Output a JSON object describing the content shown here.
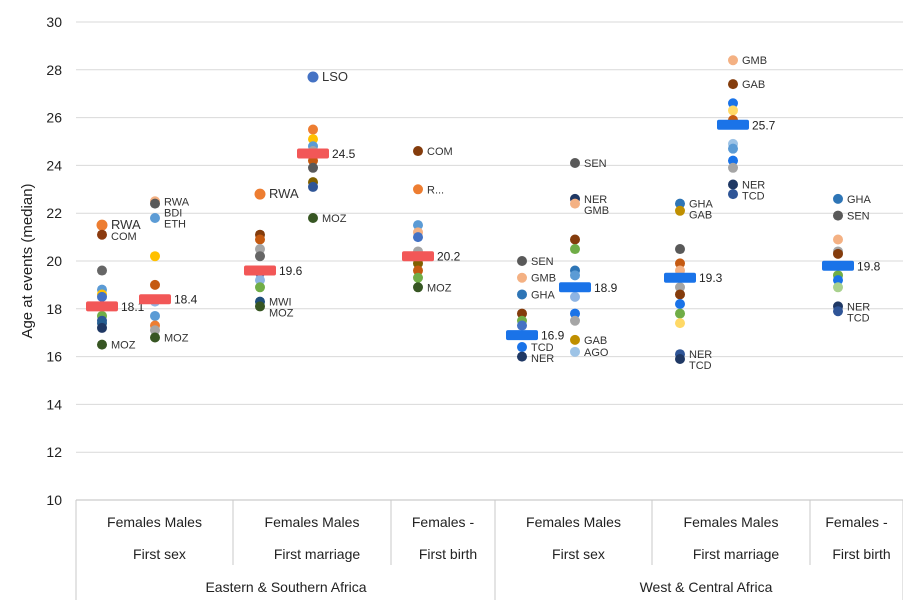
{
  "chart_data": {
    "type": "scatter",
    "ylabel": "Age at events (median)",
    "ylim": [
      10,
      30
    ],
    "yticks": [
      10,
      12,
      14,
      16,
      18,
      20,
      22,
      24,
      26,
      28,
      30
    ],
    "grid": "horizontal",
    "subcategories": [
      "Females Males",
      "Females Males",
      "Females      -",
      "Females Males",
      "Females Males",
      "Females      -"
    ],
    "events": [
      "First sex",
      "First marriage",
      "First birth",
      "First sex",
      "First marriage",
      "First birth"
    ],
    "regions": [
      "Eastern & Southern Africa",
      "West & Central Africa"
    ],
    "colors": {
      "esa_median": "#f25757",
      "wca_median": "#1a73e8"
    },
    "groups": [
      {
        "region": "Eastern & Southern Africa",
        "event": "First sex",
        "sex": "Females",
        "median": 18.1,
        "median_label": "18.1",
        "points": [
          {
            "value": 21.5,
            "color": "#ed7d31",
            "label": "RWA",
            "big": true
          },
          {
            "value": 21.1,
            "color": "#8b3a0f",
            "label": "COM"
          },
          {
            "value": 19.6,
            "color": "#666666"
          },
          {
            "value": 18.8,
            "color": "#5b9bd5"
          },
          {
            "value": 18.6,
            "color": "#ffc000"
          },
          {
            "value": 18.5,
            "color": "#4472c4"
          },
          {
            "value": 17.7,
            "color": "#70ad47"
          },
          {
            "value": 17.5,
            "color": "#2f5597"
          },
          {
            "value": 17.4,
            "color": "#255e91"
          },
          {
            "value": 17.2,
            "color": "#1f3864"
          },
          {
            "value": 16.5,
            "color": "#375623",
            "label": "MOZ"
          }
        ]
      },
      {
        "region": "Eastern & Southern Africa",
        "event": "First sex",
        "sex": "Males",
        "median": 18.4,
        "median_label": "18.4",
        "points": [
          {
            "value": 22.5,
            "color": "#f4b183",
            "label": "RWA"
          },
          {
            "value": 22.4,
            "color": "#595959",
            "label": "BDI"
          },
          {
            "value": 21.8,
            "color": "#5b9bd5",
            "label": "ETH"
          },
          {
            "value": 20.2,
            "color": "#ffc000"
          },
          {
            "value": 19.0,
            "color": "#c55a11"
          },
          {
            "value": 18.3,
            "color": "#8eb4e3"
          },
          {
            "value": 17.7,
            "color": "#5b9bd5"
          },
          {
            "value": 17.3,
            "color": "#ed7d31"
          },
          {
            "value": 17.1,
            "color": "#a5a5a5"
          },
          {
            "value": 16.8,
            "color": "#375623",
            "label": "MOZ"
          }
        ]
      },
      {
        "region": "Eastern & Southern Africa",
        "event": "First marriage",
        "sex": "Females",
        "median": 19.6,
        "median_label": "19.6",
        "points": [
          {
            "value": 22.8,
            "color": "#ed7d31",
            "label": "RWA",
            "big": true
          },
          {
            "value": 21.1,
            "color": "#843c0c"
          },
          {
            "value": 20.9,
            "color": "#c55a11"
          },
          {
            "value": 20.5,
            "color": "#a5a5a5"
          },
          {
            "value": 20.2,
            "color": "#666666"
          },
          {
            "value": 19.5,
            "color": "#4472c4"
          },
          {
            "value": 19.2,
            "color": "#8eb4e3"
          },
          {
            "value": 18.9,
            "color": "#70ad47"
          },
          {
            "value": 18.3,
            "color": "#1f4e79",
            "label": "MWI"
          },
          {
            "value": 18.1,
            "color": "#375623",
            "label": "MOZ"
          }
        ]
      },
      {
        "region": "Eastern & Southern Africa",
        "event": "First marriage",
        "sex": "Males",
        "median": 24.5,
        "median_label": "24.5",
        "points": [
          {
            "value": 27.7,
            "color": "#4472c4",
            "label": "LSO",
            "big": true
          },
          {
            "value": 25.5,
            "color": "#ed7d31"
          },
          {
            "value": 25.1,
            "color": "#ffc000"
          },
          {
            "value": 24.8,
            "color": "#5b9bd5"
          },
          {
            "value": 24.6,
            "color": "#a5a5a5"
          },
          {
            "value": 24.2,
            "color": "#c55a11"
          },
          {
            "value": 23.9,
            "color": "#595959"
          },
          {
            "value": 23.3,
            "color": "#806000"
          },
          {
            "value": 23.1,
            "color": "#2f5597"
          },
          {
            "value": 21.8,
            "color": "#375623",
            "label": "MOZ"
          }
        ]
      },
      {
        "region": "Eastern & Southern Africa",
        "event": "First birth",
        "sex": "Females",
        "median": 20.2,
        "median_label": "20.2",
        "points": [
          {
            "value": 24.6,
            "color": "#843c0c",
            "label": "COM"
          },
          {
            "value": 23.0,
            "color": "#ed7d31",
            "label": "R..."
          },
          {
            "value": 21.5,
            "color": "#5b9bd5"
          },
          {
            "value": 21.2,
            "color": "#f4b183"
          },
          {
            "value": 21.0,
            "color": "#4472c4"
          },
          {
            "value": 20.4,
            "color": "#a5a5a5"
          },
          {
            "value": 19.9,
            "color": "#806000"
          },
          {
            "value": 19.6,
            "color": "#c55a11"
          },
          {
            "value": 19.3,
            "color": "#70ad47"
          },
          {
            "value": 18.9,
            "color": "#375623",
            "label": "MOZ"
          }
        ]
      },
      {
        "region": "West & Central Africa",
        "event": "First sex",
        "sex": "Females",
        "median": 16.9,
        "median_label": "16.9",
        "points": [
          {
            "value": 20.0,
            "color": "#595959",
            "label": "SEN"
          },
          {
            "value": 19.3,
            "color": "#f4b183",
            "label": "GMB"
          },
          {
            "value": 18.6,
            "color": "#2e75b6",
            "label": "GHA"
          },
          {
            "value": 17.8,
            "color": "#843c0c"
          },
          {
            "value": 17.5,
            "color": "#70ad47"
          },
          {
            "value": 17.3,
            "color": "#4472c4"
          },
          {
            "value": 16.4,
            "color": "#1a73e8",
            "label": "TCD"
          },
          {
            "value": 16.0,
            "color": "#1f3864",
            "label": "NER"
          }
        ]
      },
      {
        "region": "West & Central Africa",
        "event": "First sex",
        "sex": "Males",
        "median": 18.9,
        "median_label": "18.9",
        "points": [
          {
            "value": 24.1,
            "color": "#595959",
            "label": "SEN"
          },
          {
            "value": 22.6,
            "color": "#1f3864",
            "label": "NER"
          },
          {
            "value": 22.4,
            "color": "#f4b183",
            "label": "GMB"
          },
          {
            "value": 20.9,
            "color": "#843c0c"
          },
          {
            "value": 20.5,
            "color": "#70ad47"
          },
          {
            "value": 19.6,
            "color": "#2e75b6"
          },
          {
            "value": 19.4,
            "color": "#5b9bd5"
          },
          {
            "value": 18.5,
            "color": "#8eb4e3"
          },
          {
            "value": 17.8,
            "color": "#1a73e8"
          },
          {
            "value": 17.5,
            "color": "#a5a5a5"
          },
          {
            "value": 16.7,
            "color": "#bf8f00",
            "label": "GAB"
          },
          {
            "value": 16.2,
            "color": "#9dc3e6",
            "label": "AGO"
          }
        ]
      },
      {
        "region": "West & Central Africa",
        "event": "First marriage",
        "sex": "Females",
        "median": 19.3,
        "median_label": "19.3",
        "points": [
          {
            "value": 22.4,
            "color": "#2e75b6",
            "label": "GHA"
          },
          {
            "value": 22.1,
            "color": "#bf8f00",
            "label": "GAB"
          },
          {
            "value": 20.5,
            "color": "#595959"
          },
          {
            "value": 19.9,
            "color": "#c55a11"
          },
          {
            "value": 19.6,
            "color": "#f4b183"
          },
          {
            "value": 18.9,
            "color": "#a5a5a5"
          },
          {
            "value": 18.6,
            "color": "#843c0c"
          },
          {
            "value": 18.2,
            "color": "#1a73e8"
          },
          {
            "value": 17.8,
            "color": "#70ad47"
          },
          {
            "value": 17.4,
            "color": "#ffd966"
          },
          {
            "value": 16.1,
            "color": "#2f5597",
            "label": "NER"
          },
          {
            "value": 15.9,
            "color": "#1f3864",
            "label": "TCD"
          }
        ]
      },
      {
        "region": "West & Central Africa",
        "event": "First marriage",
        "sex": "Males",
        "median": 25.7,
        "median_label": "25.7",
        "points": [
          {
            "value": 28.4,
            "color": "#f4b183",
            "label": "GMB"
          },
          {
            "value": 27.4,
            "color": "#843c0c",
            "label": "GAB"
          },
          {
            "value": 26.6,
            "color": "#1a73e8"
          },
          {
            "value": 26.3,
            "color": "#ffd966"
          },
          {
            "value": 25.9,
            "color": "#c55a11"
          },
          {
            "value": 24.9,
            "color": "#9dc3e6"
          },
          {
            "value": 24.7,
            "color": "#5b9bd5"
          },
          {
            "value": 24.2,
            "color": "#1a73e8"
          },
          {
            "value": 23.9,
            "color": "#a5a5a5"
          },
          {
            "value": 23.2,
            "color": "#1f3864",
            "label": "NER"
          },
          {
            "value": 22.8,
            "color": "#2f5597",
            "label": "TCD"
          }
        ]
      },
      {
        "region": "West & Central Africa",
        "event": "First birth",
        "sex": "Females",
        "median": 19.8,
        "median_label": "19.8",
        "points": [
          {
            "value": 22.6,
            "color": "#2e75b6",
            "label": "GHA"
          },
          {
            "value": 21.9,
            "color": "#595959",
            "label": "SEN"
          },
          {
            "value": 20.9,
            "color": "#f4b183"
          },
          {
            "value": 20.4,
            "color": "#a5a5a5"
          },
          {
            "value": 20.3,
            "color": "#843c0c"
          },
          {
            "value": 19.4,
            "color": "#70ad47"
          },
          {
            "value": 19.2,
            "color": "#1a73e8"
          },
          {
            "value": 18.9,
            "color": "#a9d18e"
          },
          {
            "value": 18.1,
            "color": "#1f3864",
            "label": "NER"
          },
          {
            "value": 17.9,
            "color": "#2f5597",
            "label": "TCD"
          }
        ]
      }
    ]
  }
}
